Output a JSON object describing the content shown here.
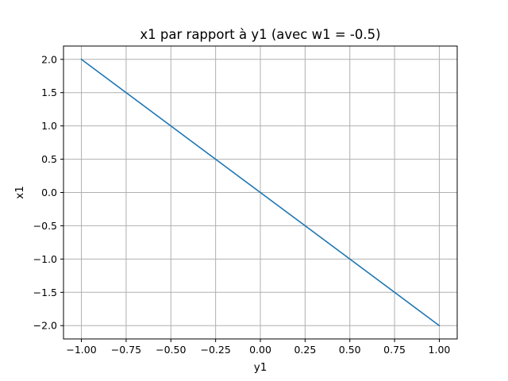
{
  "chart_data": {
    "type": "line",
    "title": "x1 par rapport à y1 (avec w1 = -0.5)",
    "xlabel": "y1",
    "ylabel": "x1",
    "xlim": [
      -1.1,
      1.1
    ],
    "ylim": [
      -2.2,
      2.2
    ],
    "grid": true,
    "x_ticks": [
      "−1.00",
      "−0.75",
      "−0.50",
      "−0.25",
      "0.00",
      "0.25",
      "0.50",
      "0.75",
      "1.00"
    ],
    "x_tick_values": [
      -1.0,
      -0.75,
      -0.5,
      -0.25,
      0.0,
      0.25,
      0.5,
      0.75,
      1.0
    ],
    "y_ticks": [
      "−2.0",
      "−1.5",
      "−1.0",
      "−0.5",
      "0.0",
      "0.5",
      "1.0",
      "1.5",
      "2.0"
    ],
    "y_tick_values": [
      -2.0,
      -1.5,
      -1.0,
      -0.5,
      0.0,
      0.5,
      1.0,
      1.5,
      2.0
    ],
    "series": [
      {
        "color": "#1f77b4",
        "x": [
          -1.0,
          1.0
        ],
        "y": [
          2.0,
          -2.0
        ]
      }
    ]
  }
}
